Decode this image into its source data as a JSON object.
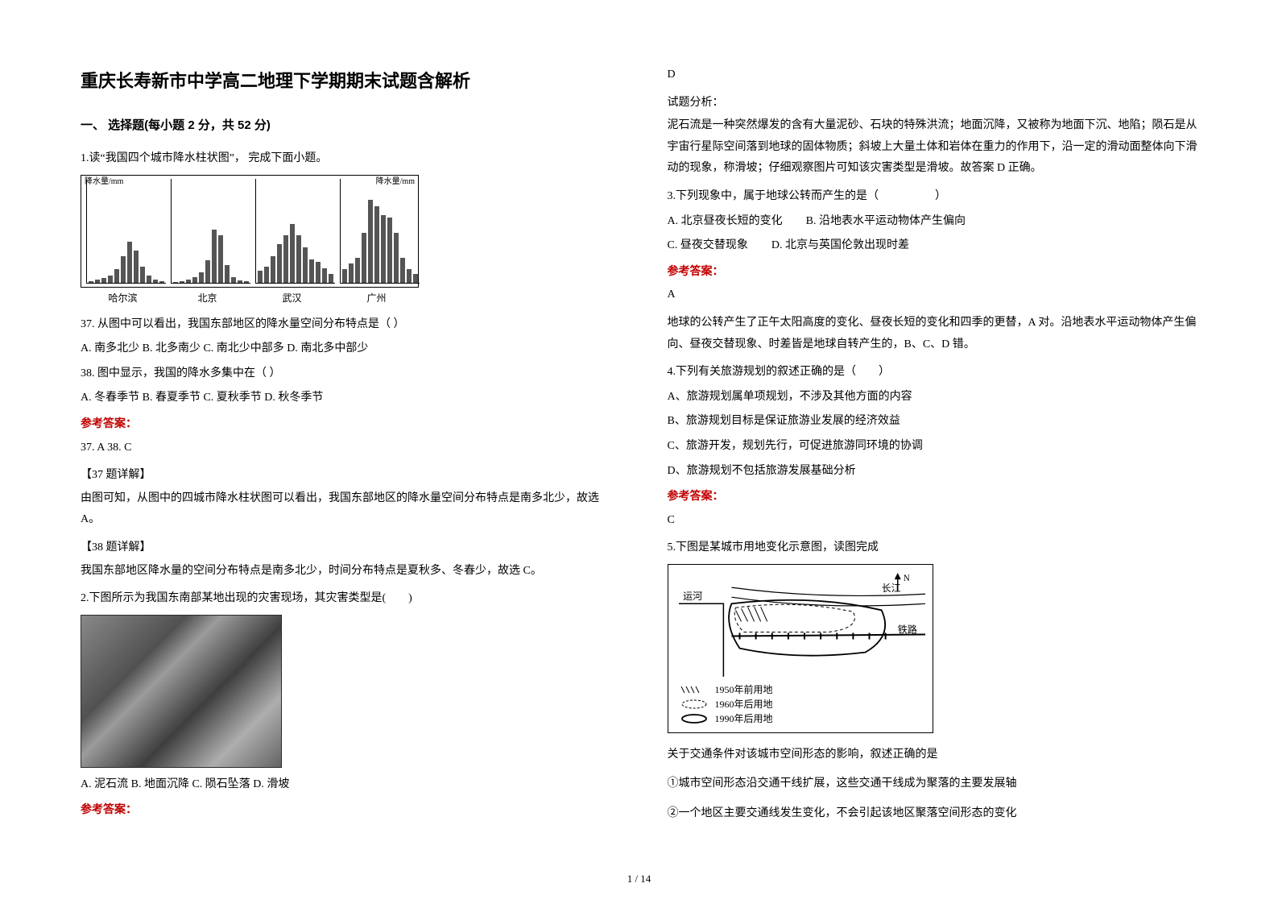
{
  "title": "重庆长寿新市中学高二地理下学期期末试题含解析",
  "section1": "一、 选择题(每小题 2 分，共 52 分)",
  "page_num": "1 / 14",
  "answer_label": "参考答案：",
  "q1": {
    "stem": "1.读“我国四个城市降水柱状图”，  完成下面小题。",
    "chart": {
      "yaxis_left": "降水量/mm",
      "yaxis_right": "降水量/mm",
      "ymax": 300,
      "cities": [
        "哈尔滨",
        "北京",
        "武汉",
        "广州"
      ],
      "series": [
        [
          5,
          10,
          15,
          25,
          45,
          90,
          140,
          110,
          55,
          25,
          12,
          6
        ],
        [
          3,
          6,
          10,
          20,
          35,
          75,
          180,
          160,
          60,
          20,
          8,
          4
        ],
        [
          40,
          55,
          90,
          130,
          160,
          200,
          160,
          120,
          80,
          70,
          50,
          30
        ],
        [
          45,
          65,
          85,
          170,
          280,
          260,
          230,
          220,
          170,
          85,
          45,
          30
        ]
      ],
      "bar_color": "#555555",
      "axis_color": "#000000",
      "xticks": "1  4  7  10月份"
    },
    "sub37": {
      "stem": "37.  从图中可以看出，我国东部地区的降水量空间分布特点是（  ）",
      "opts": "A.  南多北少    B.  北多南少    C.  南北少中部多      D.  南北多中部少"
    },
    "sub38": {
      "stem": "38.  图中显示，我国的降水多集中在（  ）",
      "opts": "A.  冬春季节    B.  春夏季节    C.  夏秋季节    D.  秋冬季节"
    },
    "answer": "37.  A          38.  C",
    "exp37_title": "【37 题详解】",
    "exp37": "由图可知，从图中的四城市降水柱状图可以看出，我国东部地区的降水量空间分布特点是南多北少，故选 A。",
    "exp38_title": "【38 题详解】",
    "exp38": "我国东部地区降水量的空间分布特点是南多北少，时间分布特点是夏秋多、冬春少，故选 C。"
  },
  "q2": {
    "stem": "2.下图所示为我国东南部某地出现的灾害现场，其灾害类型是(　　)",
    "opts": "A.  泥石流          B.  地面沉降          C.  陨石坠落          D.  滑坡",
    "answer": "D",
    "exp_title": "试题分析：",
    "exp": "泥石流是一种突然爆发的含有大量泥砂、石块的特殊洪流；地面沉降，又被称为地面下沉、地陷；陨石是从宇宙行星际空间落到地球的固体物质；斜坡上大量土体和岩体在重力的作用下，沿一定的滑动面整体向下滑动的现象，称滑坡；仔细观察图片可知该灾害类型是滑坡。故答案 D 正确。"
  },
  "q3": {
    "stem": "3.下列现象中，属于地球公转而产生的是（　　　　　）",
    "optA": "A.  北京昼夜长短的变化",
    "optB": "B.  沿地表水平运动物体产生偏向",
    "optC": "C.  昼夜交替现象",
    "optD": "D.  北京与英国伦敦出现时差",
    "answer": "A",
    "exp": "地球的公转产生了正午太阳高度的变化、昼夜长短的变化和四季的更替，A 对。沿地表水平运动物体产生偏向、昼夜交替现象、时差皆是地球自转产生的，B、C、D 错。"
  },
  "q4": {
    "stem": "4.下列有关旅游规划的叙述正确的是（　　）",
    "optA": "A、旅游规划属单项规划，不涉及其他方面的内容",
    "optB": "B、旅游规划目标是保证旅游业发展的经济效益",
    "optC": "C、旅游开发，规划先行，可促进旅游同环境的协调",
    "optD": "D、旅游规划不包括旅游发展基础分析",
    "answer": "C"
  },
  "q5": {
    "stem": "5.下图是某城市用地变化示意图，读图完成",
    "map": {
      "label_canal": "运河",
      "label_river": "长江",
      "label_rail": "铁路",
      "north": "N",
      "legend1": "1950年前用地",
      "legend2": "1960年后用地",
      "legend3": "1990年后用地"
    },
    "sub_stem": "关于交通条件对该城市空间形态的影响，叙述正确的是",
    "opt1": "①城市空间形态沿交通干线扩展，这些交通干线成为聚落的主要发展轴",
    "opt2": "②一个地区主要交通线发生变化，不会引起该地区聚落空间形态的变化"
  }
}
